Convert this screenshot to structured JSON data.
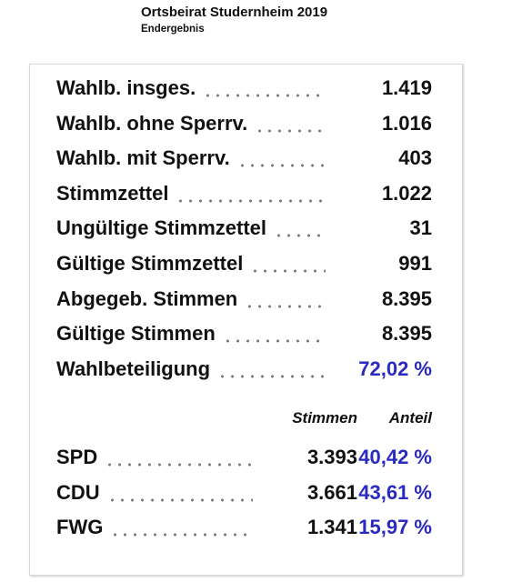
{
  "header": {
    "title": "Ortsbeirat Studernheim 2019",
    "subtitle": "Endergebnis"
  },
  "stats": [
    {
      "label": "Wahlb. insges.",
      "value": "1.419"
    },
    {
      "label": "Wahlb. ohne Sperrv.",
      "value": "1.016"
    },
    {
      "label": "Wahlb. mit Sperrv.",
      "value": "403"
    },
    {
      "label": "Stimmzettel",
      "value": "1.022"
    },
    {
      "label": "Ungültige Stimmzettel",
      "value": "31"
    },
    {
      "label": "Gültige Stimmzettel",
      "value": "991"
    },
    {
      "label": "Abgegeb. Stimmen",
      "value": "8.395"
    },
    {
      "label": "Gültige Stimmen",
      "value": "8.395"
    },
    {
      "label": "Wahlbeteiligung",
      "value": "72,02 %"
    }
  ],
  "results": {
    "columns": [
      "Stimmen",
      "Anteil"
    ],
    "rows": [
      {
        "party": "SPD",
        "votes": "3.393",
        "share": "40,42 %"
      },
      {
        "party": "CDU",
        "votes": "3.661",
        "share": "43,61 %"
      },
      {
        "party": "FWG",
        "votes": "1.341",
        "share": "15,97 %"
      }
    ]
  }
}
